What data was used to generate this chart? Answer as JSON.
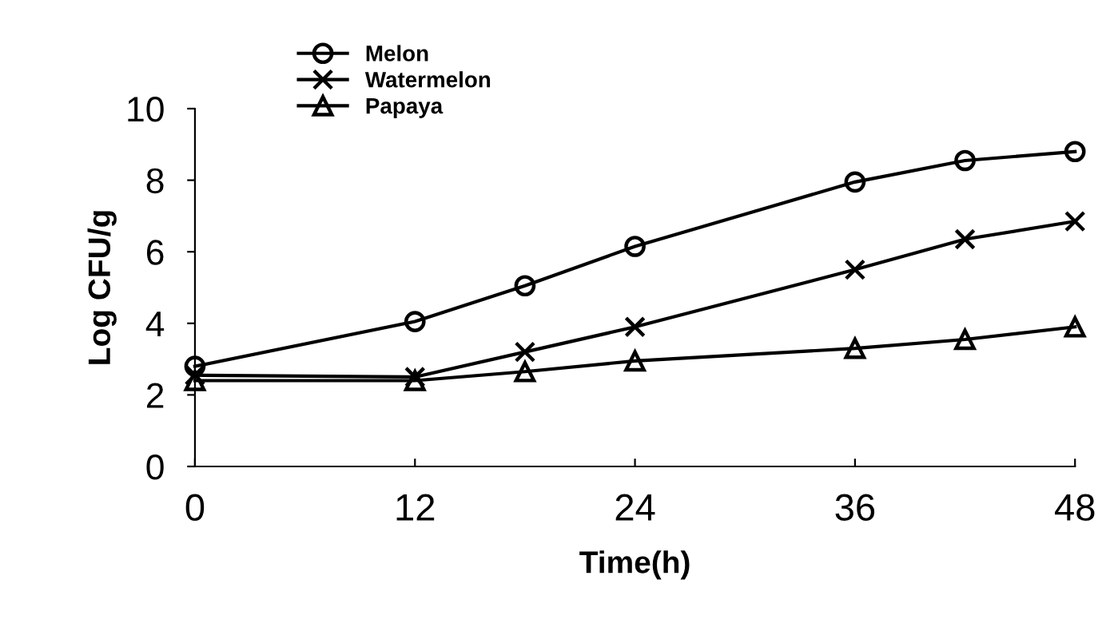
{
  "chart_data": {
    "type": "line",
    "xlabel": "Time(h)",
    "ylabel": "Log CFU/g",
    "x": [
      0,
      12,
      18,
      24,
      36,
      42,
      48
    ],
    "series": [
      {
        "name": "Melon",
        "color": "#000000",
        "marker": "circle",
        "values": [
          2.8,
          4.05,
          5.05,
          6.15,
          7.95,
          8.55,
          8.8
        ]
      },
      {
        "name": "Watermelon",
        "color": "#000000",
        "marker": "cross",
        "values": [
          2.55,
          2.5,
          3.2,
          3.9,
          5.5,
          6.35,
          6.85
        ]
      },
      {
        "name": "Papaya",
        "color": "#000000",
        "marker": "triangle",
        "values": [
          2.4,
          2.4,
          2.65,
          2.95,
          3.3,
          3.55,
          3.9
        ]
      }
    ],
    "xlim": [
      0,
      48
    ],
    "xticks": [
      0,
      12,
      24,
      36,
      48
    ],
    "ylim": [
      0,
      10
    ],
    "yticks": [
      0,
      2,
      4,
      6,
      8,
      10
    ],
    "grid": false,
    "legend": "top",
    "line_style": "solid"
  }
}
